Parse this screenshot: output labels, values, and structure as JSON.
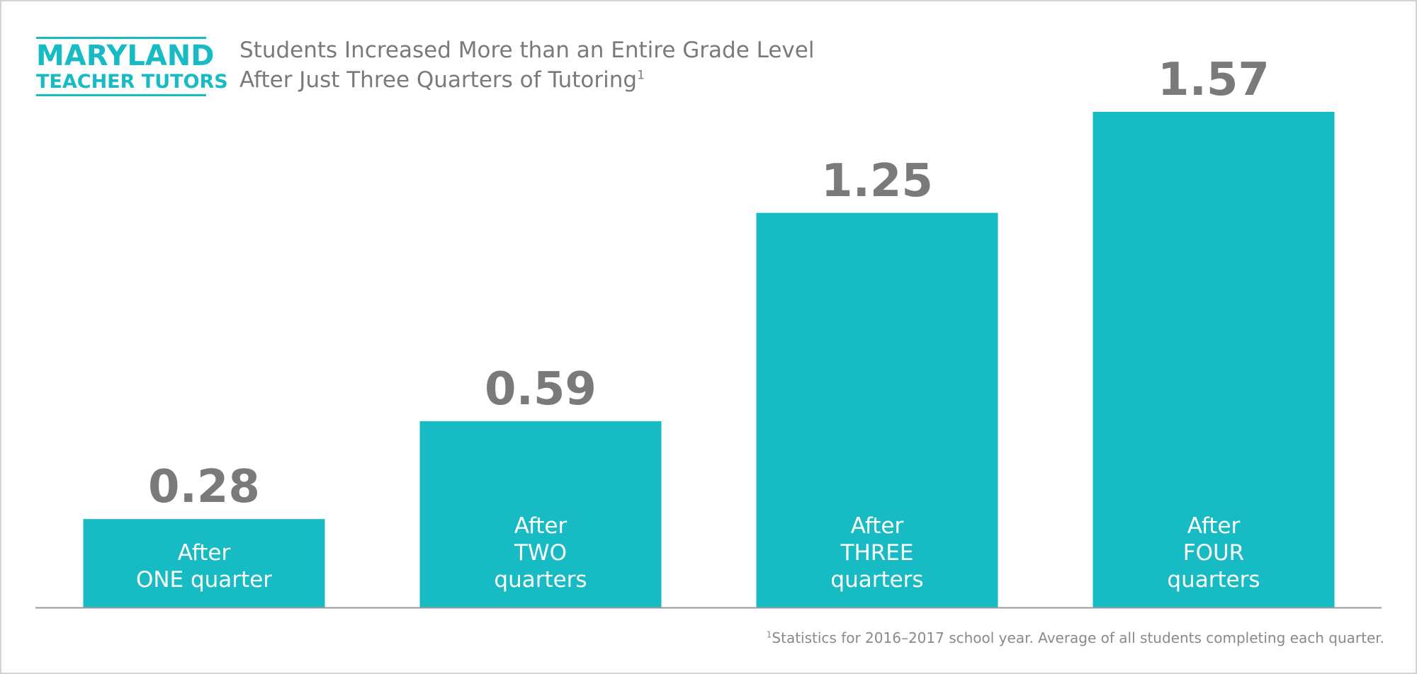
{
  "logo": {
    "line1": "MARYLAND",
    "line2": "TEACHER TUTORS",
    "color": "#17bbc4"
  },
  "header": {
    "title_line1": "Students Increased More than an Entire Grade Level",
    "title_line2": "After Just Three Quarters of Tutoring",
    "title_superscript": "1"
  },
  "footnote": {
    "marker": "1",
    "text": "Statistics for 2016–2017 school year. Average of all students completing each quarter."
  },
  "colors": {
    "bar": "#17bbc4",
    "value_text": "#7a7a7a",
    "axis": "#9a9a9a"
  },
  "chart_data": {
    "type": "bar",
    "categories": [
      "After\nONE quarter",
      "After\nTWO\nquarters",
      "After\nTHREE\nquarters",
      "After\nFOUR\nquarters"
    ],
    "values": [
      0.28,
      0.59,
      1.25,
      1.57
    ],
    "value_labels": [
      "0.28",
      "0.59",
      "1.25",
      "1.57"
    ],
    "ylim": [
      0,
      1.6
    ],
    "grid": false,
    "legend": "none"
  }
}
